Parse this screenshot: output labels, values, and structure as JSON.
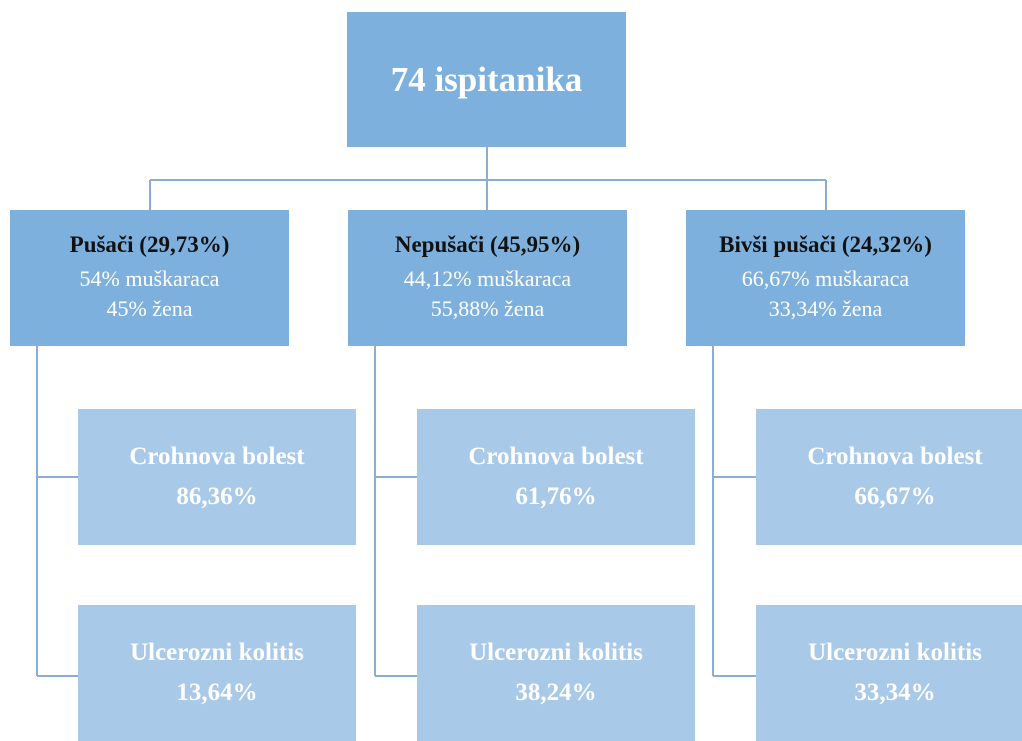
{
  "root": {
    "label": "74 ispitanika"
  },
  "groups": [
    {
      "title": "Pušači (29,73%)",
      "lines": [
        "54% muškaraca",
        "45% žena"
      ],
      "children": [
        {
          "name": "Crohnova bolest",
          "value": "86,36%"
        },
        {
          "name": "Ulcerozni kolitis",
          "value": "13,64%"
        }
      ]
    },
    {
      "title": "Nepušači (45,95%)",
      "lines": [
        "44,12% muškaraca",
        "55,88% žena"
      ],
      "children": [
        {
          "name": "Crohnova bolest",
          "value": "61,76%"
        },
        {
          "name": "Ulcerozni kolitis",
          "value": "38,24%"
        }
      ]
    },
    {
      "title": "Bivši pušači (24,32%)",
      "lines": [
        "66,67% muškaraca",
        "33,34% žena"
      ],
      "children": [
        {
          "name": "Crohnova bolest",
          "value": "66,67%"
        },
        {
          "name": "Ulcerozni kolitis",
          "value": "33,34%"
        }
      ]
    }
  ]
}
